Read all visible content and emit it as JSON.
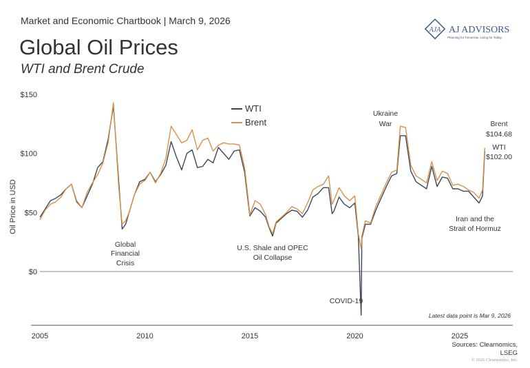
{
  "header": {
    "chartbook": "Market and Economic Chartbook | March 9, 2026",
    "logo_text": "AJ ADVISORS",
    "logo_monogram": "AJA",
    "logo_tagline": "Planning for Tomorrow. Living for Today."
  },
  "footer": {
    "latest": "Latest data point is Mar 9, 2026",
    "sources_1": "Sources: Clearnomics,",
    "sources_2": "LSEG",
    "copyright": "© 2026 Clearnomics, Inc."
  },
  "colors": {
    "wti": "#3b4758",
    "brent": "#d8914a",
    "grid": "#888888"
  },
  "chart_data": {
    "type": "line",
    "title": "Global Oil Prices",
    "subtitle": "WTI and Brent Crude",
    "xlabel": "",
    "ylabel": "Oil Price in USD",
    "xlim": [
      2005,
      2027.5
    ],
    "ylim": [
      -45,
      155
    ],
    "x_ticks": [
      "2005",
      "2010",
      "2015",
      "2020",
      "2025"
    ],
    "y_ticks": [
      {
        "value": 150,
        "label": "$150"
      },
      {
        "value": 100,
        "label": "$100"
      },
      {
        "value": 50,
        "label": "$50"
      },
      {
        "value": 0,
        "label": "$0"
      }
    ],
    "legend": {
      "position": "top-center",
      "entries": [
        "WTI",
        "Brent"
      ]
    },
    "dates": [
      "2005-01",
      "2005-04",
      "2005-07",
      "2005-10",
      "2006-01",
      "2006-04",
      "2006-07",
      "2006-10",
      "2007-01",
      "2007-04",
      "2007-07",
      "2007-10",
      "2008-01",
      "2008-04",
      "2008-07",
      "2008-10",
      "2008-12",
      "2009-02",
      "2009-04",
      "2009-07",
      "2009-10",
      "2010-01",
      "2010-04",
      "2010-07",
      "2010-10",
      "2011-01",
      "2011-04",
      "2011-07",
      "2011-10",
      "2012-01",
      "2012-04",
      "2012-07",
      "2012-10",
      "2013-01",
      "2013-04",
      "2013-07",
      "2013-10",
      "2014-01",
      "2014-04",
      "2014-07",
      "2014-10",
      "2014-12",
      "2015-01",
      "2015-04",
      "2015-07",
      "2015-10",
      "2015-12",
      "2016-02",
      "2016-04",
      "2016-07",
      "2016-10",
      "2017-01",
      "2017-04",
      "2017-07",
      "2017-10",
      "2018-01",
      "2018-04",
      "2018-07",
      "2018-10",
      "2018-12",
      "2019-01",
      "2019-04",
      "2019-07",
      "2019-10",
      "2020-01",
      "2020-03",
      "2020-04-20",
      "2020-05",
      "2020-07",
      "2020-10",
      "2021-01",
      "2021-04",
      "2021-07",
      "2021-10",
      "2022-01",
      "2022-03",
      "2022-06",
      "2022-09",
      "2022-12",
      "2023-03",
      "2023-06",
      "2023-09",
      "2023-12",
      "2024-03",
      "2024-06",
      "2024-09",
      "2024-12",
      "2025-03",
      "2025-06",
      "2025-09",
      "2025-12",
      "2026-02",
      "2026-03-09"
    ],
    "series": [
      {
        "name": "WTI",
        "values": [
          46,
          53,
          60,
          62,
          65,
          70,
          74,
          59,
          54,
          64,
          74,
          88,
          93,
          112,
          140,
          77,
          36,
          40,
          50,
          65,
          76,
          78,
          84,
          76,
          82,
          90,
          110,
          97,
          86,
          100,
          103,
          88,
          89,
          95,
          92,
          105,
          100,
          95,
          102,
          103,
          84,
          59,
          47,
          54,
          51,
          46,
          37,
          30,
          41,
          45,
          49,
          52,
          51,
          46,
          52,
          63,
          66,
          71,
          71,
          49,
          51,
          63,
          57,
          54,
          58,
          30,
          -37,
          28,
          40,
          40,
          52,
          62,
          72,
          81,
          83,
          115,
          115,
          85,
          76,
          73,
          70,
          89,
          72,
          80,
          79,
          70,
          70,
          68,
          68,
          63,
          58,
          64,
          102.0
        ]
      },
      {
        "name": "Brent",
        "values": [
          44,
          52,
          57,
          59,
          63,
          70,
          74,
          60,
          54,
          67,
          75,
          82,
          92,
          109,
          143,
          72,
          40,
          43,
          50,
          65,
          74,
          77,
          84,
          75,
          83,
          96,
          123,
          116,
          109,
          111,
          120,
          103,
          111,
          113,
          102,
          107,
          109,
          108,
          108,
          107,
          88,
          62,
          48,
          60,
          57,
          48,
          38,
          32,
          42,
          46,
          50,
          55,
          53,
          49,
          58,
          69,
          72,
          74,
          81,
          57,
          60,
          71,
          64,
          60,
          64,
          32,
          19,
          30,
          43,
          41,
          55,
          65,
          75,
          84,
          86,
          123,
          122,
          90,
          81,
          78,
          75,
          93,
          77,
          85,
          83,
          73,
          74,
          72,
          69,
          67,
          62,
          69,
          104.68
        ]
      }
    ],
    "annotations": {
      "gfc": [
        "Global",
        "Financial",
        "Crisis"
      ],
      "shale": [
        "U.S. Shale and OPEC",
        "Oil Collapse"
      ],
      "covid": "COVID-19",
      "ukraine": [
        "Ukraine",
        "War"
      ],
      "brent_label": "Brent",
      "brent_value": "$104.68",
      "wti_label": "WTI",
      "wti_value": "$102.00",
      "iran": [
        "Iran and the",
        "Strait of Hormuz"
      ]
    }
  }
}
